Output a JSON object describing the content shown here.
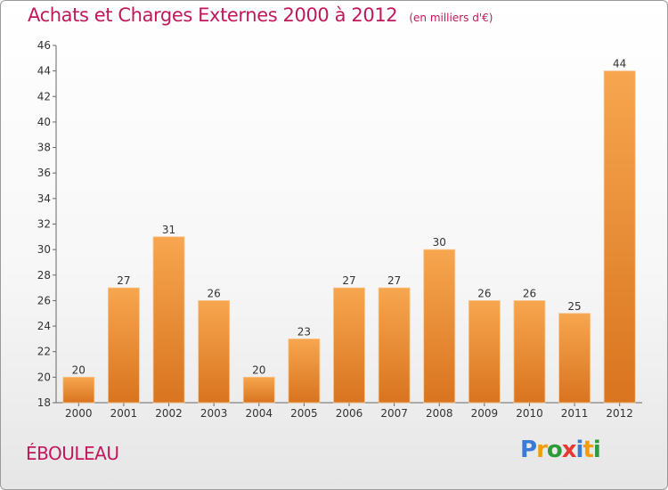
{
  "header": {
    "title": "Achats et Charges Externes 2000 à 2012",
    "subtitle": "(en milliers d'€)"
  },
  "commune": "ÉBOULEAU",
  "logo": {
    "letters": [
      {
        "ch": "P",
        "color": "#3a7bd5"
      },
      {
        "ch": "r",
        "color": "#f39c12"
      },
      {
        "ch": "o",
        "color": "#2e9b3a"
      },
      {
        "ch": "x",
        "color": "#e53935"
      },
      {
        "ch": "i",
        "color": "#3a7bd5"
      },
      {
        "ch": "t",
        "color": "#f39c12"
      },
      {
        "ch": "i",
        "color": "#2e9b3a"
      }
    ]
  },
  "chart_data": {
    "type": "bar",
    "title": "Achats et Charges Externes 2000 à 2012",
    "subtitle": "(en milliers d'€)",
    "categories": [
      "2000",
      "2001",
      "2002",
      "2003",
      "2004",
      "2005",
      "2006",
      "2007",
      "2008",
      "2009",
      "2010",
      "2011",
      "2012"
    ],
    "values": [
      20,
      27,
      31,
      26,
      20,
      23,
      27,
      27,
      30,
      26,
      26,
      25,
      44
    ],
    "ylim": [
      18,
      46
    ],
    "yticks": [
      18,
      20,
      22,
      24,
      26,
      28,
      30,
      32,
      34,
      36,
      38,
      40,
      42,
      44,
      46
    ],
    "grid": false,
    "bar_color_top": "#f7a64f",
    "bar_color_bottom": "#d9741f"
  }
}
